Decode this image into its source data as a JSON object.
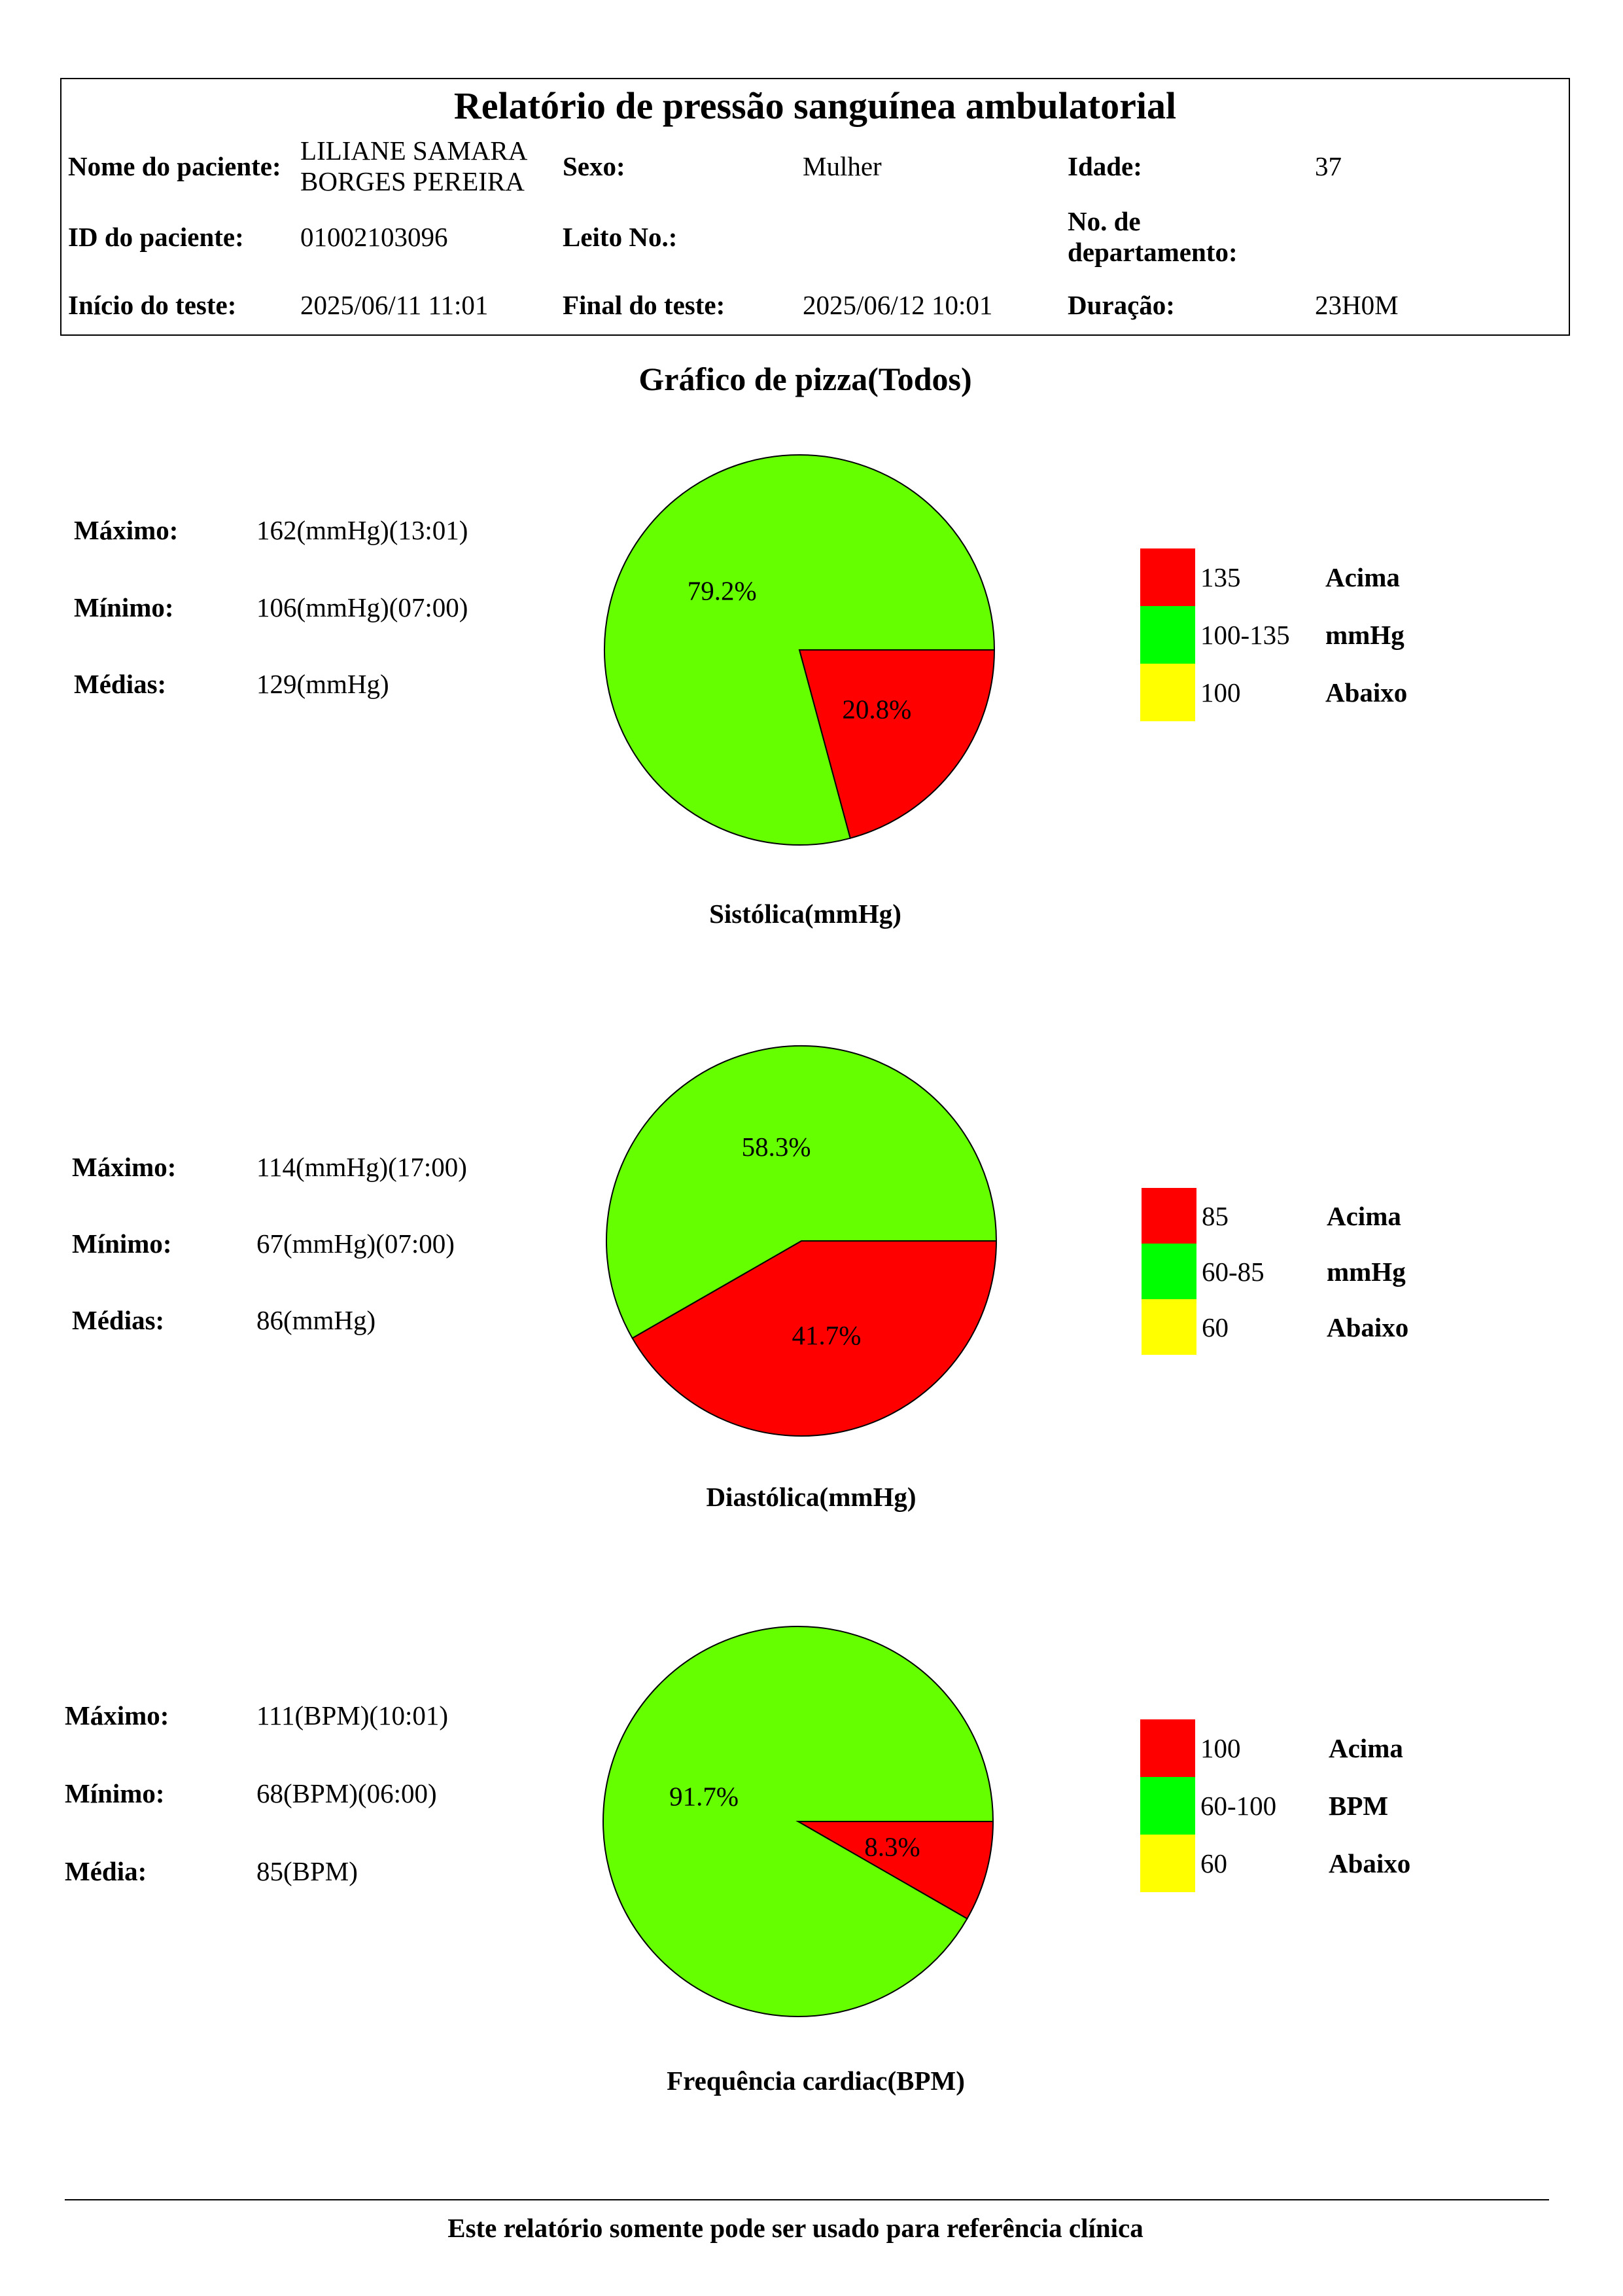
{
  "report": {
    "title": "Relatório de pressão sanguínea ambulatorial",
    "name_label": "Nome do paciente:",
    "name_value": "LILIANE SAMARA BORGES PEREIRA",
    "sex_label": "Sexo:",
    "sex_value": "Mulher",
    "age_label": "Idade:",
    "age_value": "37",
    "id_label": "ID do paciente:",
    "id_value": "01002103096",
    "bed_label": "Leito No.:",
    "department_label": "No. de departamento:",
    "start_label": "Início do teste:",
    "start_value": "2025/06/11 11:01",
    "end_label": "Final do teste:",
    "end_value": "2025/06/12 10:01",
    "duration_label": "Duração:",
    "duration_value": "23H0M"
  },
  "section_title": "Gráfico de pizza(Todos)",
  "chart_data": [
    {
      "type": "pie",
      "title": "Sistólica(mmHg)",
      "slices": [
        {
          "value": 20.8,
          "label": "20.8%",
          "color": "#FF0000"
        },
        {
          "value": 79.2,
          "label": "79.2%",
          "color": "#66FF00"
        },
        {
          "value": 0,
          "color": "#FFFF00"
        }
      ],
      "legend": [
        {
          "range": "135",
          "text": "Acima",
          "color": "#FF0000"
        },
        {
          "range": "100-135",
          "text": "mmHg",
          "color": "#00FF00"
        },
        {
          "range": "100",
          "text": "Abaixo",
          "color": "#FFFF00"
        }
      ],
      "stats": [
        {
          "label": "Máximo:",
          "value": "162(mmHg)(13:01)"
        },
        {
          "label": "Mínimo:",
          "value": "106(mmHg)(07:00)"
        },
        {
          "label": "Médias:",
          "value": "129(mmHg)"
        }
      ]
    },
    {
      "type": "pie",
      "title": "Diastólica(mmHg)",
      "slices": [
        {
          "value": 41.7,
          "label": "41.7%",
          "color": "#FF0000"
        },
        {
          "value": 58.3,
          "label": "58.3%",
          "color": "#66FF00"
        },
        {
          "value": 0,
          "color": "#FFFF00"
        }
      ],
      "legend": [
        {
          "range": "85",
          "text": "Acima",
          "color": "#FF0000"
        },
        {
          "range": "60-85",
          "text": "mmHg",
          "color": "#00FF00"
        },
        {
          "range": "60",
          "text": "Abaixo",
          "color": "#FFFF00"
        }
      ],
      "stats": [
        {
          "label": "Máximo:",
          "value": "114(mmHg)(17:00)"
        },
        {
          "label": "Mínimo:",
          "value": "67(mmHg)(07:00)"
        },
        {
          "label": "Médias:",
          "value": "86(mmHg)"
        }
      ]
    },
    {
      "type": "pie",
      "title": "Frequência cardiac(BPM)",
      "slices": [
        {
          "value": 8.3,
          "label": "8.3%",
          "color": "#FF0000"
        },
        {
          "value": 91.7,
          "label": "91.7%",
          "color": "#66FF00"
        },
        {
          "value": 0,
          "color": "#FFFF00"
        }
      ],
      "legend": [
        {
          "range": "100",
          "text": "Acima",
          "color": "#FF0000"
        },
        {
          "range": "60-100",
          "text": "BPM",
          "color": "#00FF00"
        },
        {
          "range": "60",
          "text": "Abaixo",
          "color": "#FFFF00"
        }
      ],
      "stats": [
        {
          "label": "Máximo:",
          "value": "111(BPM)(10:01)"
        },
        {
          "label": "Mínimo:",
          "value": "68(BPM)(06:00)"
        },
        {
          "label": "Média:",
          "value": "85(BPM)"
        }
      ]
    }
  ],
  "footer": {
    "note": "Este relatório somente pode ser usado para referência clínica"
  }
}
